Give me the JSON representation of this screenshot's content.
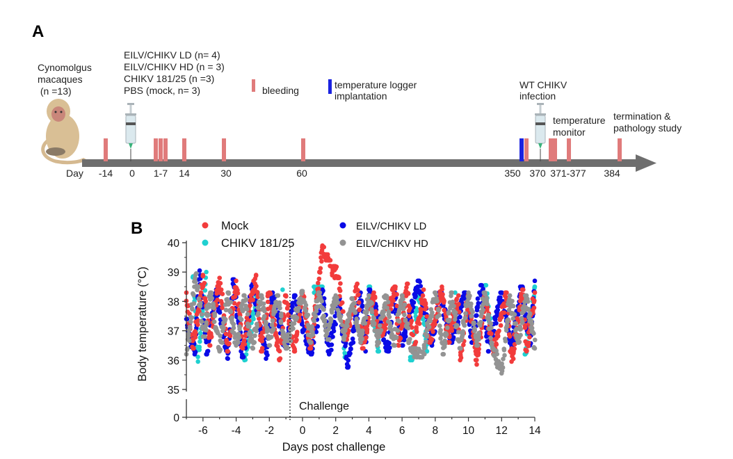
{
  "panel_a": {
    "label": "A",
    "subject": [
      "Cynomolgus",
      "macaques",
      " (n =13)"
    ],
    "groups": [
      "EILV/CHIKV LD (n= 4)",
      "EILV/CHIKV HD (n = 3)",
      "CHIKV 181/25 (n =3)",
      "PBS (mock, n= 3)"
    ],
    "legend_bleeding": "bleeding",
    "legend_logger": [
      "temperature logger",
      "implantation"
    ],
    "infection": [
      "WT CHIKV",
      "infection"
    ],
    "temp_monitor": [
      "temperature",
      "monitor"
    ],
    "termination": [
      "termination &",
      "pathology study"
    ],
    "day_label": "Day",
    "day_ticks": [
      "-14",
      "0",
      "1-7",
      "14",
      "30",
      "60",
      "350",
      "370",
      "371-377",
      "384"
    ],
    "colors": {
      "bleeding": "#e07b7b",
      "logger": "#1a22e0",
      "arrow": "#6e6e6e"
    },
    "icons": [
      "macaque-icon",
      "syringe-icon"
    ]
  },
  "chart_data": {
    "panel_label": "B",
    "type": "scatter",
    "xlabel": "Days post challenge",
    "ylabel": "Body temperature  (°C)",
    "xlim": [
      -7,
      14
    ],
    "ylim": [
      35,
      40
    ],
    "y_axis_break": "between 0 and 35",
    "xticks": [
      "-6",
      "-4",
      "-2",
      "0",
      "2",
      "4",
      "6",
      "8",
      "10",
      "12",
      "14"
    ],
    "yticks": [
      "40",
      "39",
      "38",
      "37",
      "36",
      "35",
      "0"
    ],
    "annotation": {
      "text": "Challenge",
      "x": -0.75,
      "style": "dotted vertical line"
    },
    "legend_placement": "top",
    "grid": false,
    "series": [
      {
        "name": "CHIKV 181/25",
        "color": "#1fd0d0",
        "points": [
          [
            -6.6,
            38.85
          ],
          [
            -6.3,
            35.95
          ],
          [
            -5.8,
            39.0
          ],
          [
            -3.5,
            36.0
          ],
          [
            -2.7,
            38.3
          ],
          [
            -1.2,
            38.4
          ],
          [
            0.7,
            38.3
          ],
          [
            1.2,
            38.5
          ],
          [
            2.5,
            36.4
          ],
          [
            2.6,
            36.1
          ],
          [
            4,
            38.5
          ],
          [
            4.6,
            36.3
          ],
          [
            6.5,
            36.1
          ],
          [
            6.6,
            36.0
          ],
          [
            7,
            38.5
          ],
          [
            7.5,
            36.3
          ],
          [
            9.2,
            38.3
          ],
          [
            11,
            38.55
          ],
          [
            11.5,
            36.4
          ],
          [
            13.4,
            36.2
          ],
          [
            14,
            38.5
          ]
        ]
      },
      {
        "name": "EILV/CHIKV LD",
        "color": "#0a0ae6",
        "points": [
          [
            -7,
            37.4
          ],
          [
            -6.5,
            36.2
          ],
          [
            -6.2,
            39.05
          ],
          [
            -5.8,
            36.2
          ],
          [
            -5.2,
            38.4
          ],
          [
            -4.5,
            36.05
          ],
          [
            -4.2,
            38.75
          ],
          [
            -3.6,
            36.1
          ],
          [
            -3,
            38.6
          ],
          [
            -2.2,
            36.05
          ],
          [
            -1.8,
            38.3
          ],
          [
            -1,
            36.4
          ],
          [
            -0.5,
            38.2
          ],
          [
            0.5,
            36.2
          ],
          [
            1.2,
            38.4
          ],
          [
            1.6,
            36.2
          ],
          [
            2.2,
            38.1
          ],
          [
            2.7,
            35.75
          ],
          [
            3.5,
            38.3
          ],
          [
            3.8,
            36.3
          ],
          [
            4,
            38.4
          ],
          [
            5.2,
            36.3
          ],
          [
            5.5,
            38.4
          ],
          [
            6,
            36.5
          ],
          [
            7,
            38.7
          ],
          [
            7.8,
            36.5
          ],
          [
            8.3,
            38.3
          ],
          [
            9,
            36.6
          ],
          [
            9.8,
            38.3
          ],
          [
            10.2,
            36.6
          ],
          [
            10.8,
            38.55
          ],
          [
            11.2,
            36.3
          ],
          [
            12,
            38.3
          ],
          [
            12.6,
            36.4
          ],
          [
            13.2,
            38.5
          ],
          [
            13.7,
            36.5
          ],
          [
            14,
            38.7
          ]
        ]
      },
      {
        "name": "Mock",
        "color": "#f23c3c",
        "points": [
          [
            -7,
            38.3
          ],
          [
            -6.6,
            36.4
          ],
          [
            -6,
            38.9
          ],
          [
            -5.6,
            36.5
          ],
          [
            -5,
            38.8
          ],
          [
            -4.5,
            36.3
          ],
          [
            -4,
            38.7
          ],
          [
            -3.6,
            36.4
          ],
          [
            -2.8,
            38.9
          ],
          [
            -2.5,
            36.3
          ],
          [
            -2,
            38.3
          ],
          [
            -1.4,
            36.0
          ],
          [
            -1,
            38.2
          ],
          [
            -0.5,
            36.3
          ],
          [
            0,
            38.3
          ],
          [
            0.5,
            36.4
          ],
          [
            1.2,
            39.9
          ],
          [
            1.3,
            39.6
          ],
          [
            1.6,
            39.4
          ],
          [
            1.7,
            39.2
          ],
          [
            2.2,
            38.8
          ],
          [
            2.6,
            36.7
          ],
          [
            3.3,
            38.6
          ],
          [
            3.6,
            36.4
          ],
          [
            4.3,
            38.3
          ],
          [
            4.6,
            36.6
          ],
          [
            5.6,
            38.5
          ],
          [
            5.8,
            36.5
          ],
          [
            6.3,
            38.6
          ],
          [
            6.7,
            36.3
          ],
          [
            7.3,
            38.4
          ],
          [
            7.7,
            36.6
          ],
          [
            8.4,
            38.5
          ],
          [
            8.8,
            36.6
          ],
          [
            9.4,
            38.2
          ],
          [
            9.5,
            36.0
          ],
          [
            10,
            38.2
          ],
          [
            10.5,
            35.85
          ],
          [
            11,
            38.2
          ],
          [
            11.5,
            36.2
          ],
          [
            12.3,
            38.3
          ],
          [
            12.6,
            35.95
          ],
          [
            13.3,
            38.4
          ],
          [
            13.5,
            36.3
          ],
          [
            14,
            38.3
          ]
        ]
      },
      {
        "name": "EILV/CHIKV HD",
        "color": "#939393",
        "points": [
          [
            -7,
            36.2
          ],
          [
            -6.4,
            38.95
          ],
          [
            -6,
            36.8
          ],
          [
            -5.5,
            38.3
          ],
          [
            -5,
            36.3
          ],
          [
            -4.5,
            38.3
          ],
          [
            -4,
            36.5
          ],
          [
            -3.5,
            38.2
          ],
          [
            -3,
            36.4
          ],
          [
            -2.5,
            38.2
          ],
          [
            -2,
            36.5
          ],
          [
            -1.5,
            38.2
          ],
          [
            -1,
            36.4
          ],
          [
            0,
            38.35
          ],
          [
            0.5,
            36.6
          ],
          [
            1,
            38.3
          ],
          [
            1.5,
            36.7
          ],
          [
            2,
            38.2
          ],
          [
            2.5,
            36.7
          ],
          [
            3,
            38.1
          ],
          [
            3.5,
            36.6
          ],
          [
            4,
            38.2
          ],
          [
            4.5,
            36.5
          ],
          [
            5,
            38.2
          ],
          [
            5.5,
            36.5
          ],
          [
            6,
            38.2
          ],
          [
            6.5,
            36.4
          ],
          [
            7.2,
            36.1
          ],
          [
            8,
            38.3
          ],
          [
            8.5,
            36.2
          ],
          [
            9,
            38.3
          ],
          [
            9.5,
            36.4
          ],
          [
            10,
            38.3
          ],
          [
            10.5,
            36.5
          ],
          [
            11,
            38.3
          ],
          [
            11.5,
            36.4
          ],
          [
            12,
            35.55
          ],
          [
            12.5,
            38.2
          ],
          [
            13,
            36.6
          ],
          [
            13.5,
            38.2
          ],
          [
            14,
            36.4
          ]
        ]
      }
    ],
    "legend": [
      {
        "name": "Mock",
        "color": "#f23c3c"
      },
      {
        "name": "CHIKV 181/25",
        "color": "#1fd0d0"
      },
      {
        "name": "EILV/CHIKV LD",
        "color": "#0a0ae6"
      },
      {
        "name": "EILV/CHIKV HD",
        "color": "#939393"
      }
    ]
  }
}
